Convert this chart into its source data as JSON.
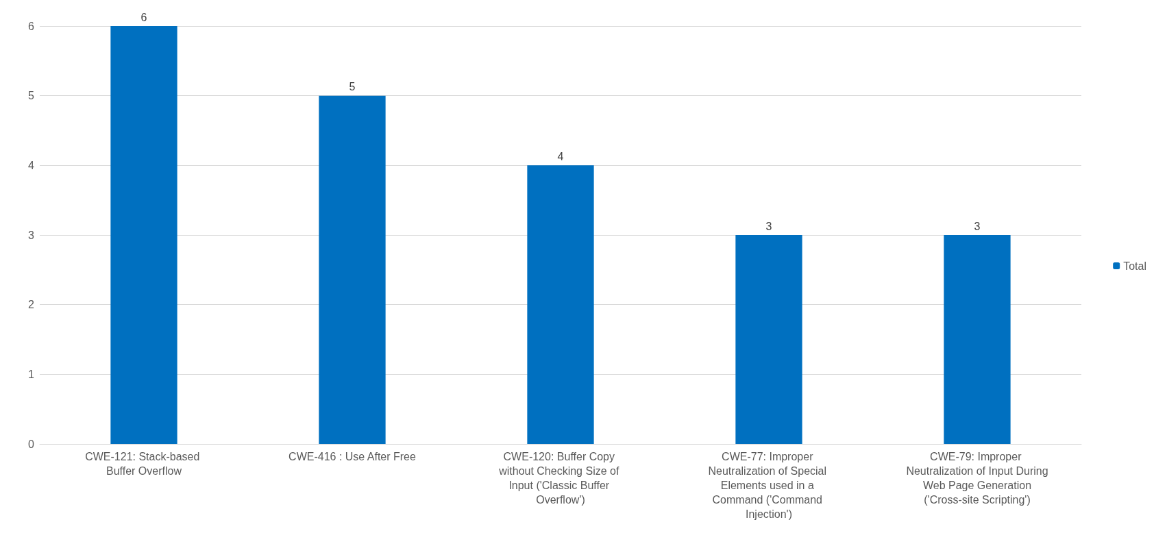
{
  "chart_data": {
    "type": "bar",
    "categories": [
      "CWE-121: Stack-based Buffer Overflow",
      "CWE-416 : Use After Free",
      "CWE-120: Buffer Copy without Checking Size of Input ('Classic Buffer Overflow')",
      "CWE-77: Improper Neutralization of Special Elements used in a Command ('Command Injection')",
      "CWE-79: Improper Neutralization of Input During Web Page Generation ('Cross-site Scripting')"
    ],
    "series": [
      {
        "name": "Total",
        "color": "#0070c0",
        "values": [
          6,
          5,
          4,
          3,
          3
        ]
      }
    ],
    "ylim": [
      0,
      6
    ],
    "yticks": [
      0,
      1,
      2,
      3,
      4,
      5,
      6
    ],
    "grid": "y",
    "legend": "right",
    "data_labels": true
  }
}
